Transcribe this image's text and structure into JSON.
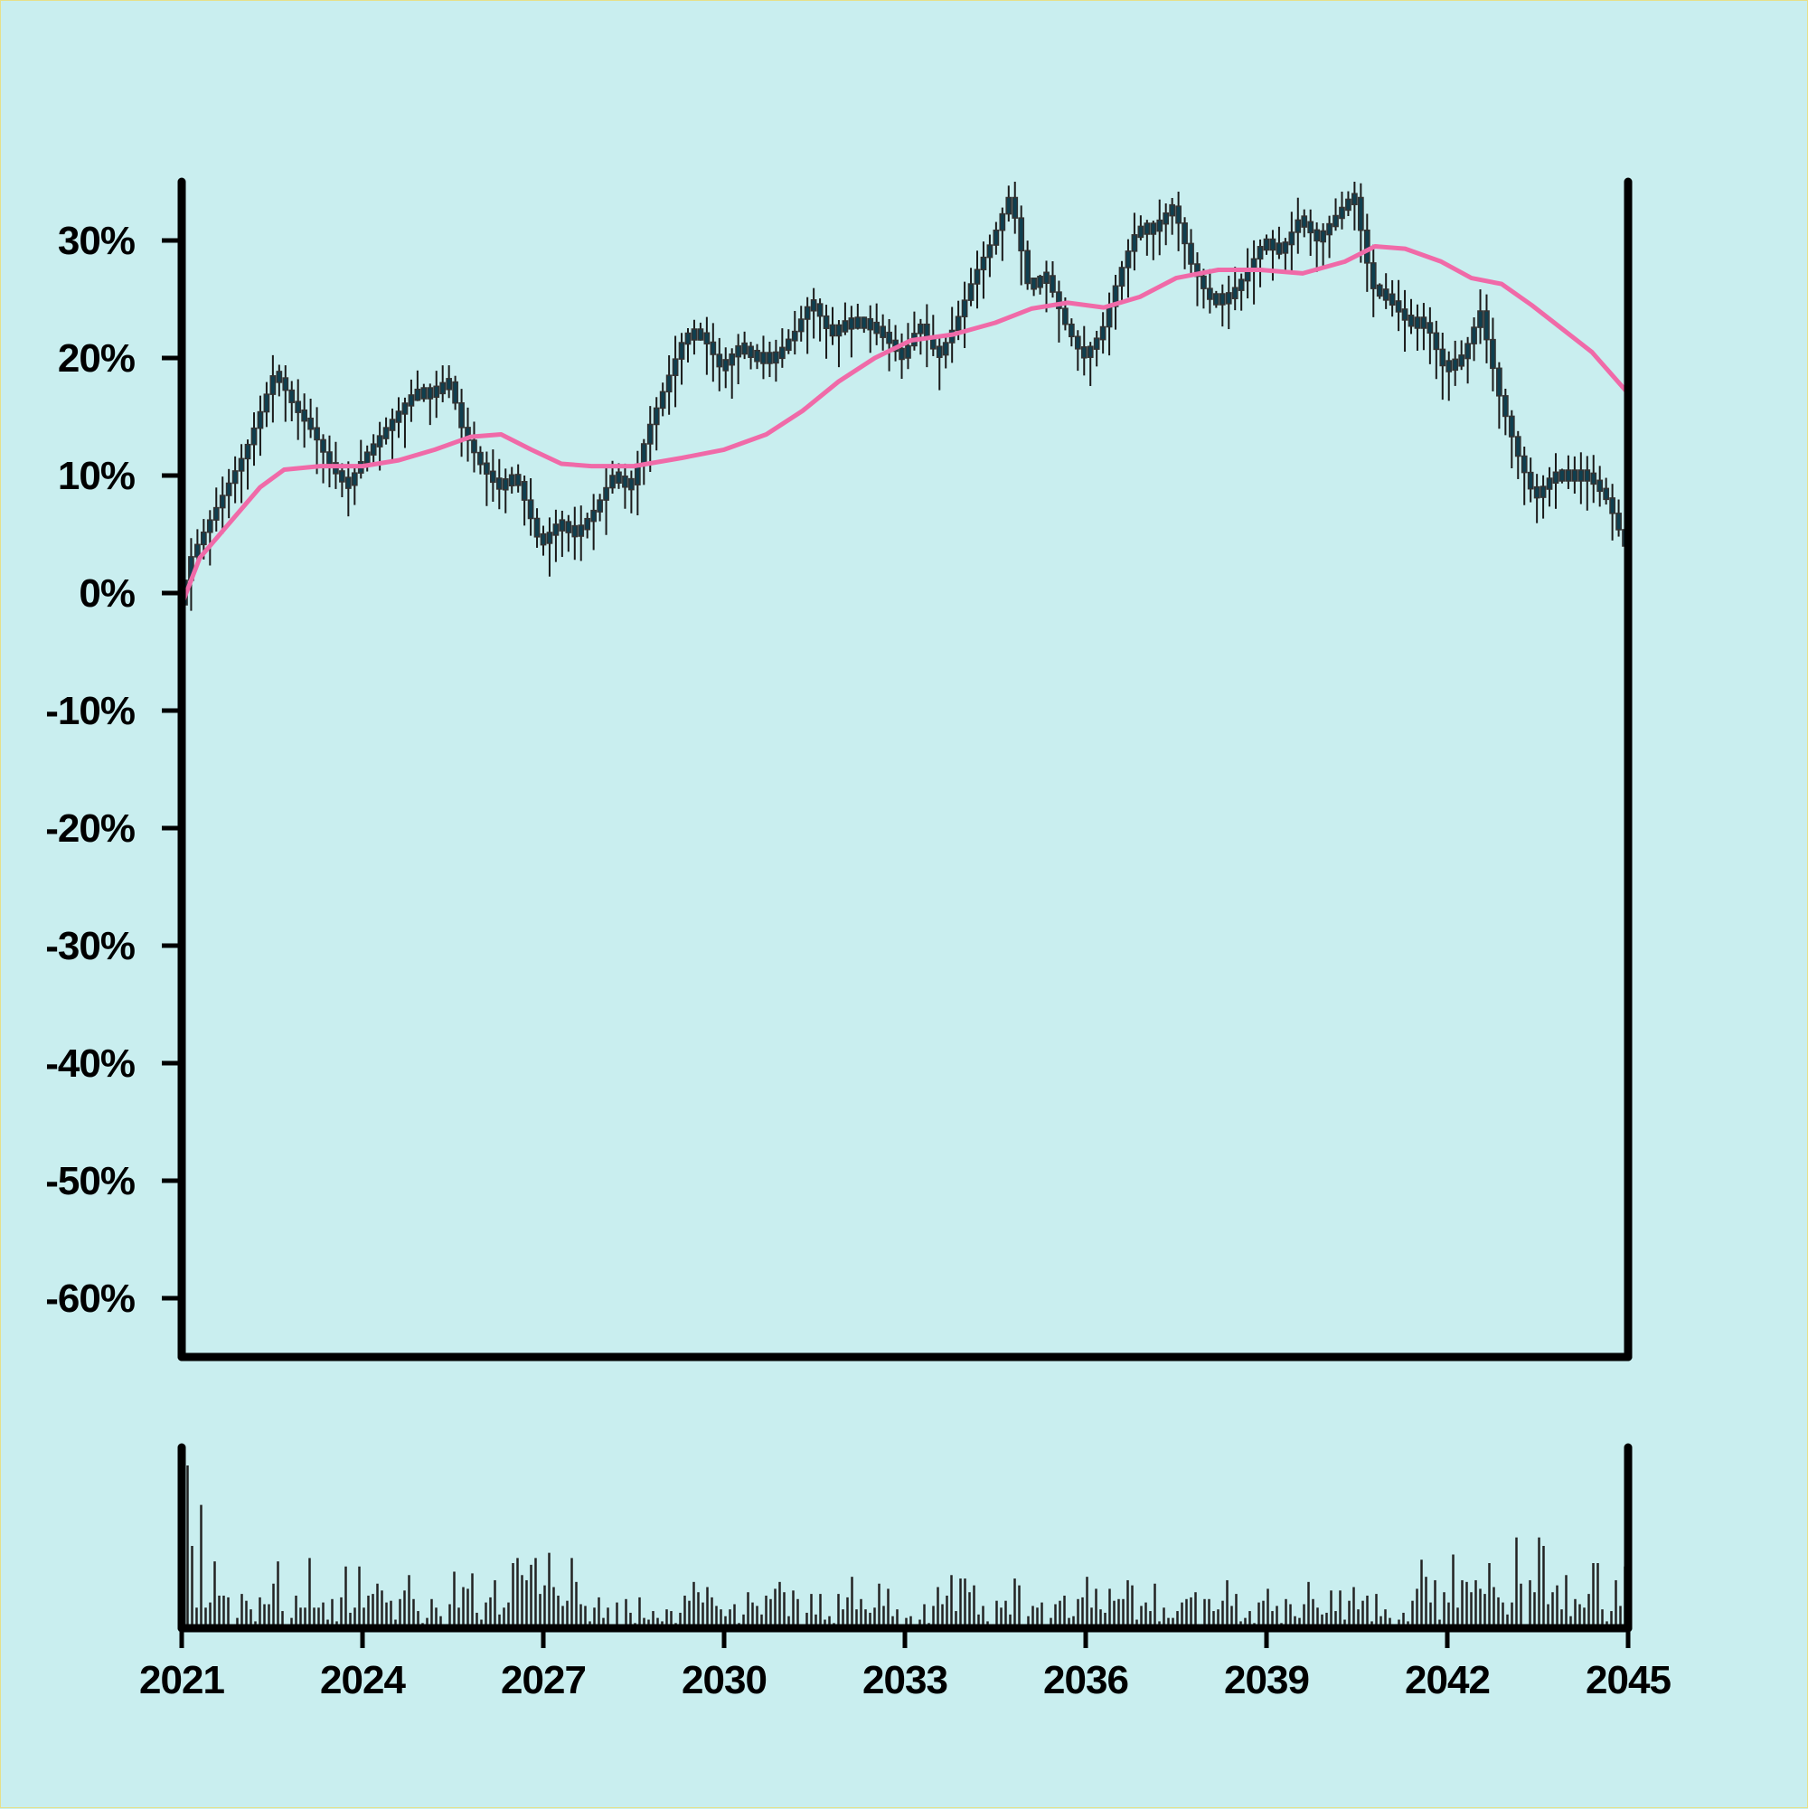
{
  "colors": {
    "background": "#c9eeef",
    "candle": "#0f3f4f",
    "wick": "#1a1a1a",
    "moving_average": "#f06aa8",
    "volume": "#222222",
    "axis": "#000000"
  },
  "chart_data": {
    "type": "candlestick",
    "title": "",
    "xlabel": "",
    "ylabel": "",
    "y_unit": "percent",
    "ylim": [
      -65,
      35
    ],
    "y_ticks": [
      30,
      20,
      10,
      0,
      -10,
      -20,
      -30,
      -40,
      -50,
      -60
    ],
    "y_tick_labels": [
      "30%",
      "20%",
      "10%",
      "0%",
      "-10%",
      "-20%",
      "-30%",
      "-40%",
      "-50%",
      "-60%"
    ],
    "xlim": [
      2021,
      2045
    ],
    "x_ticks": [
      2021,
      2024,
      2027,
      2030,
      2033,
      2036,
      2039,
      2042,
      2045
    ],
    "x_tick_labels": [
      "2021",
      "2024",
      "2027",
      "2030",
      "2033",
      "2036",
      "2039",
      "2042",
      "2045"
    ],
    "grid": false,
    "legend": "none",
    "price_series": {
      "name": "",
      "points": [
        [
          2021.0,
          -1
        ],
        [
          2021.2,
          3
        ],
        [
          2021.5,
          6
        ],
        [
          2021.8,
          9
        ],
        [
          2022.1,
          12
        ],
        [
          2022.4,
          16
        ],
        [
          2022.6,
          19
        ],
        [
          2022.9,
          16
        ],
        [
          2023.2,
          14
        ],
        [
          2023.5,
          11
        ],
        [
          2023.8,
          9
        ],
        [
          2024.0,
          11
        ],
        [
          2024.3,
          13
        ],
        [
          2024.6,
          15
        ],
        [
          2024.9,
          17
        ],
        [
          2025.2,
          17
        ],
        [
          2025.5,
          18
        ],
        [
          2025.7,
          14
        ],
        [
          2026.0,
          11
        ],
        [
          2026.3,
          9
        ],
        [
          2026.6,
          10
        ],
        [
          2026.8,
          7
        ],
        [
          2027.0,
          4
        ],
        [
          2027.3,
          6
        ],
        [
          2027.6,
          5
        ],
        [
          2027.9,
          7
        ],
        [
          2028.2,
          10
        ],
        [
          2028.5,
          9
        ],
        [
          2028.8,
          14
        ],
        [
          2029.1,
          18
        ],
        [
          2029.4,
          22
        ],
        [
          2029.7,
          22
        ],
        [
          2030.0,
          19
        ],
        [
          2030.3,
          21
        ],
        [
          2030.6,
          20
        ],
        [
          2030.9,
          20
        ],
        [
          2031.2,
          22
        ],
        [
          2031.5,
          25
        ],
        [
          2031.8,
          22
        ],
        [
          2032.1,
          23
        ],
        [
          2032.4,
          23
        ],
        [
          2032.7,
          22
        ],
        [
          2033.0,
          20
        ],
        [
          2033.3,
          23
        ],
        [
          2033.6,
          20
        ],
        [
          2033.9,
          23
        ],
        [
          2034.2,
          27
        ],
        [
          2034.5,
          30
        ],
        [
          2034.8,
          34
        ],
        [
          2035.1,
          26
        ],
        [
          2035.4,
          27
        ],
        [
          2035.7,
          23
        ],
        [
          2036.0,
          20
        ],
        [
          2036.3,
          22
        ],
        [
          2036.6,
          27
        ],
        [
          2036.9,
          31
        ],
        [
          2037.2,
          31
        ],
        [
          2037.5,
          33
        ],
        [
          2037.8,
          28
        ],
        [
          2038.1,
          25
        ],
        [
          2038.4,
          25
        ],
        [
          2038.7,
          27
        ],
        [
          2039.0,
          30
        ],
        [
          2039.3,
          29
        ],
        [
          2039.6,
          32
        ],
        [
          2039.9,
          30
        ],
        [
          2040.2,
          32
        ],
        [
          2040.5,
          34
        ],
        [
          2040.8,
          26
        ],
        [
          2041.1,
          25
        ],
        [
          2041.4,
          23
        ],
        [
          2041.7,
          23
        ],
        [
          2042.0,
          19
        ],
        [
          2042.3,
          20
        ],
        [
          2042.6,
          24
        ],
        [
          2042.9,
          17
        ],
        [
          2043.2,
          12
        ],
        [
          2043.5,
          8
        ],
        [
          2043.8,
          10
        ],
        [
          2044.1,
          10
        ],
        [
          2044.4,
          10
        ],
        [
          2044.7,
          8
        ],
        [
          2045.0,
          4
        ]
      ]
    },
    "moving_average": {
      "name": "",
      "points": [
        [
          2021.0,
          -1
        ],
        [
          2021.3,
          3
        ],
        [
          2021.8,
          6
        ],
        [
          2022.3,
          9
        ],
        [
          2022.7,
          10.5
        ],
        [
          2023.3,
          10.8
        ],
        [
          2024.0,
          10.8
        ],
        [
          2024.6,
          11.3
        ],
        [
          2025.2,
          12.2
        ],
        [
          2025.8,
          13.3
        ],
        [
          2026.3,
          13.5
        ],
        [
          2026.8,
          12.2
        ],
        [
          2027.3,
          11
        ],
        [
          2027.8,
          10.8
        ],
        [
          2028.5,
          10.8
        ],
        [
          2029.3,
          11.5
        ],
        [
          2030.0,
          12.2
        ],
        [
          2030.7,
          13.5
        ],
        [
          2031.3,
          15.5
        ],
        [
          2031.9,
          18
        ],
        [
          2032.5,
          20
        ],
        [
          2033.1,
          21.5
        ],
        [
          2033.8,
          22
        ],
        [
          2034.5,
          23
        ],
        [
          2035.1,
          24.2
        ],
        [
          2035.7,
          24.7
        ],
        [
          2036.3,
          24.3
        ],
        [
          2036.9,
          25.2
        ],
        [
          2037.5,
          26.8
        ],
        [
          2038.2,
          27.5
        ],
        [
          2038.9,
          27.5
        ],
        [
          2039.6,
          27.2
        ],
        [
          2040.3,
          28.2
        ],
        [
          2040.8,
          29.5
        ],
        [
          2041.3,
          29.3
        ],
        [
          2041.9,
          28.2
        ],
        [
          2042.4,
          26.8
        ],
        [
          2042.9,
          26.3
        ],
        [
          2043.4,
          24.5
        ],
        [
          2043.9,
          22.5
        ],
        [
          2044.4,
          20.5
        ],
        [
          2045.0,
          17
        ]
      ]
    },
    "volume": {
      "name": "",
      "values": [
        95,
        48,
        12,
        72,
        12,
        15,
        39,
        19,
        19,
        18,
        1,
        6,
        20,
        16,
        11,
        4,
        18,
        14,
        14,
        26,
        39,
        10,
        2,
        6,
        19,
        12,
        12,
        41,
        12,
        12,
        15,
        5,
        17,
        4,
        18,
        36,
        9,
        12,
        36,
        12,
        19,
        20,
        26,
        22,
        15,
        16,
        5,
        17,
        22,
        31,
        17,
        10,
        3,
        6,
        17,
        12,
        7,
        1,
        14,
        33,
        12,
        24,
        23,
        32,
        9,
        5,
        15,
        18,
        28,
        8,
        12,
        15,
        38,
        41,
        31,
        28,
        37,
        41,
        20,
        25,
        44,
        24,
        19,
        13,
        16,
        41,
        27,
        14,
        13,
        4,
        12,
        18,
        6,
        12,
        1,
        15,
        2,
        17,
        9,
        3,
        18,
        6,
        5,
        10,
        6,
        4,
        11,
        10,
        3,
        9,
        19,
        16,
        27,
        21,
        15,
        24,
        18,
        13,
        11,
        7,
        11,
        14,
        3,
        8,
        21,
        15,
        13,
        8,
        19,
        17,
        23,
        27,
        21,
        7,
        22,
        17,
        1,
        9,
        20,
        8,
        20,
        5,
        7,
        3,
        20,
        11,
        18,
        30,
        11,
        17,
        11,
        9,
        12,
        26,
        13,
        23,
        7,
        11,
        1,
        6,
        7,
        2,
        5,
        14,
        3,
        13,
        24,
        14,
        19,
        31,
        10,
        29,
        29,
        21,
        25,
        8,
        13,
        4,
        2,
        16,
        12,
        16,
        8,
        29,
        25,
        1,
        7,
        13,
        12,
        15,
        2,
        6,
        14,
        16,
        19,
        6,
        7,
        17,
        18,
        30,
        12,
        23,
        11,
        9,
        23,
        16,
        17,
        17,
        28,
        25,
        5,
        13,
        15,
        10,
        26,
        4,
        12,
        6,
        6,
        10,
        15,
        17,
        18,
        21,
        1,
        17,
        17,
        10,
        11,
        16,
        28,
        13,
        20,
        4,
        6,
        10,
        3,
        15,
        16,
        23,
        10,
        13,
        3,
        17,
        14,
        7,
        6,
        14,
        27,
        17,
        12,
        8,
        9,
        22,
        10,
        22,
        5,
        16,
        24,
        11,
        16,
        19,
        4,
        20,
        7,
        11,
        6,
        2,
        5,
        9,
        4,
        16,
        23,
        40,
        30,
        15,
        28,
        5,
        21,
        15,
        43,
        12,
        28,
        27,
        21,
        28,
        23,
        20,
        38,
        24,
        18,
        15,
        8,
        15,
        53,
        26,
        1,
        28,
        21,
        53,
        48,
        14,
        21,
        25,
        11,
        31,
        7,
        17,
        14,
        12,
        20,
        38,
        38,
        11,
        4,
        10,
        28,
        13,
        36,
        42
      ]
    }
  }
}
